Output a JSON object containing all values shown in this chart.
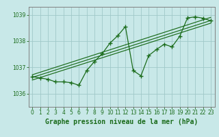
{
  "title": "Graphe pression niveau de la mer (hPa)",
  "background_color": "#c8e8e8",
  "grid_color": "#a0c8c8",
  "line_color": "#1a6b1a",
  "spine_color": "#808080",
  "xlim": [
    -0.5,
    23.5
  ],
  "ylim": [
    1035.5,
    1039.3
  ],
  "yticks": [
    1036,
    1037,
    1038,
    1039
  ],
  "xticks": [
    0,
    1,
    2,
    3,
    4,
    5,
    6,
    7,
    8,
    9,
    10,
    11,
    12,
    13,
    14,
    15,
    16,
    17,
    18,
    19,
    20,
    21,
    22,
    23
  ],
  "main_x": [
    0,
    1,
    2,
    3,
    4,
    5,
    6,
    7,
    8,
    9,
    10,
    11,
    12,
    13,
    14,
    15,
    16,
    17,
    18,
    19,
    20,
    21,
    22,
    23
  ],
  "main_y": [
    1036.65,
    1036.6,
    1036.55,
    1036.45,
    1036.45,
    1036.42,
    1036.32,
    1036.88,
    1037.22,
    1037.52,
    1037.92,
    1038.2,
    1038.55,
    1036.88,
    1036.68,
    1037.45,
    1037.68,
    1037.88,
    1037.78,
    1038.18,
    1038.88,
    1038.92,
    1038.87,
    1038.77
  ],
  "trend1_x": [
    0,
    23
  ],
  "trend1_y": [
    1036.72,
    1038.9
  ],
  "trend2_x": [
    0,
    23
  ],
  "trend2_y": [
    1036.62,
    1038.78
  ],
  "trend3_x": [
    0,
    23
  ],
  "trend3_y": [
    1036.52,
    1038.68
  ],
  "ylabel_fontsize": 5.5,
  "xlabel_fontsize": 7,
  "tick_fontsize": 5.5
}
